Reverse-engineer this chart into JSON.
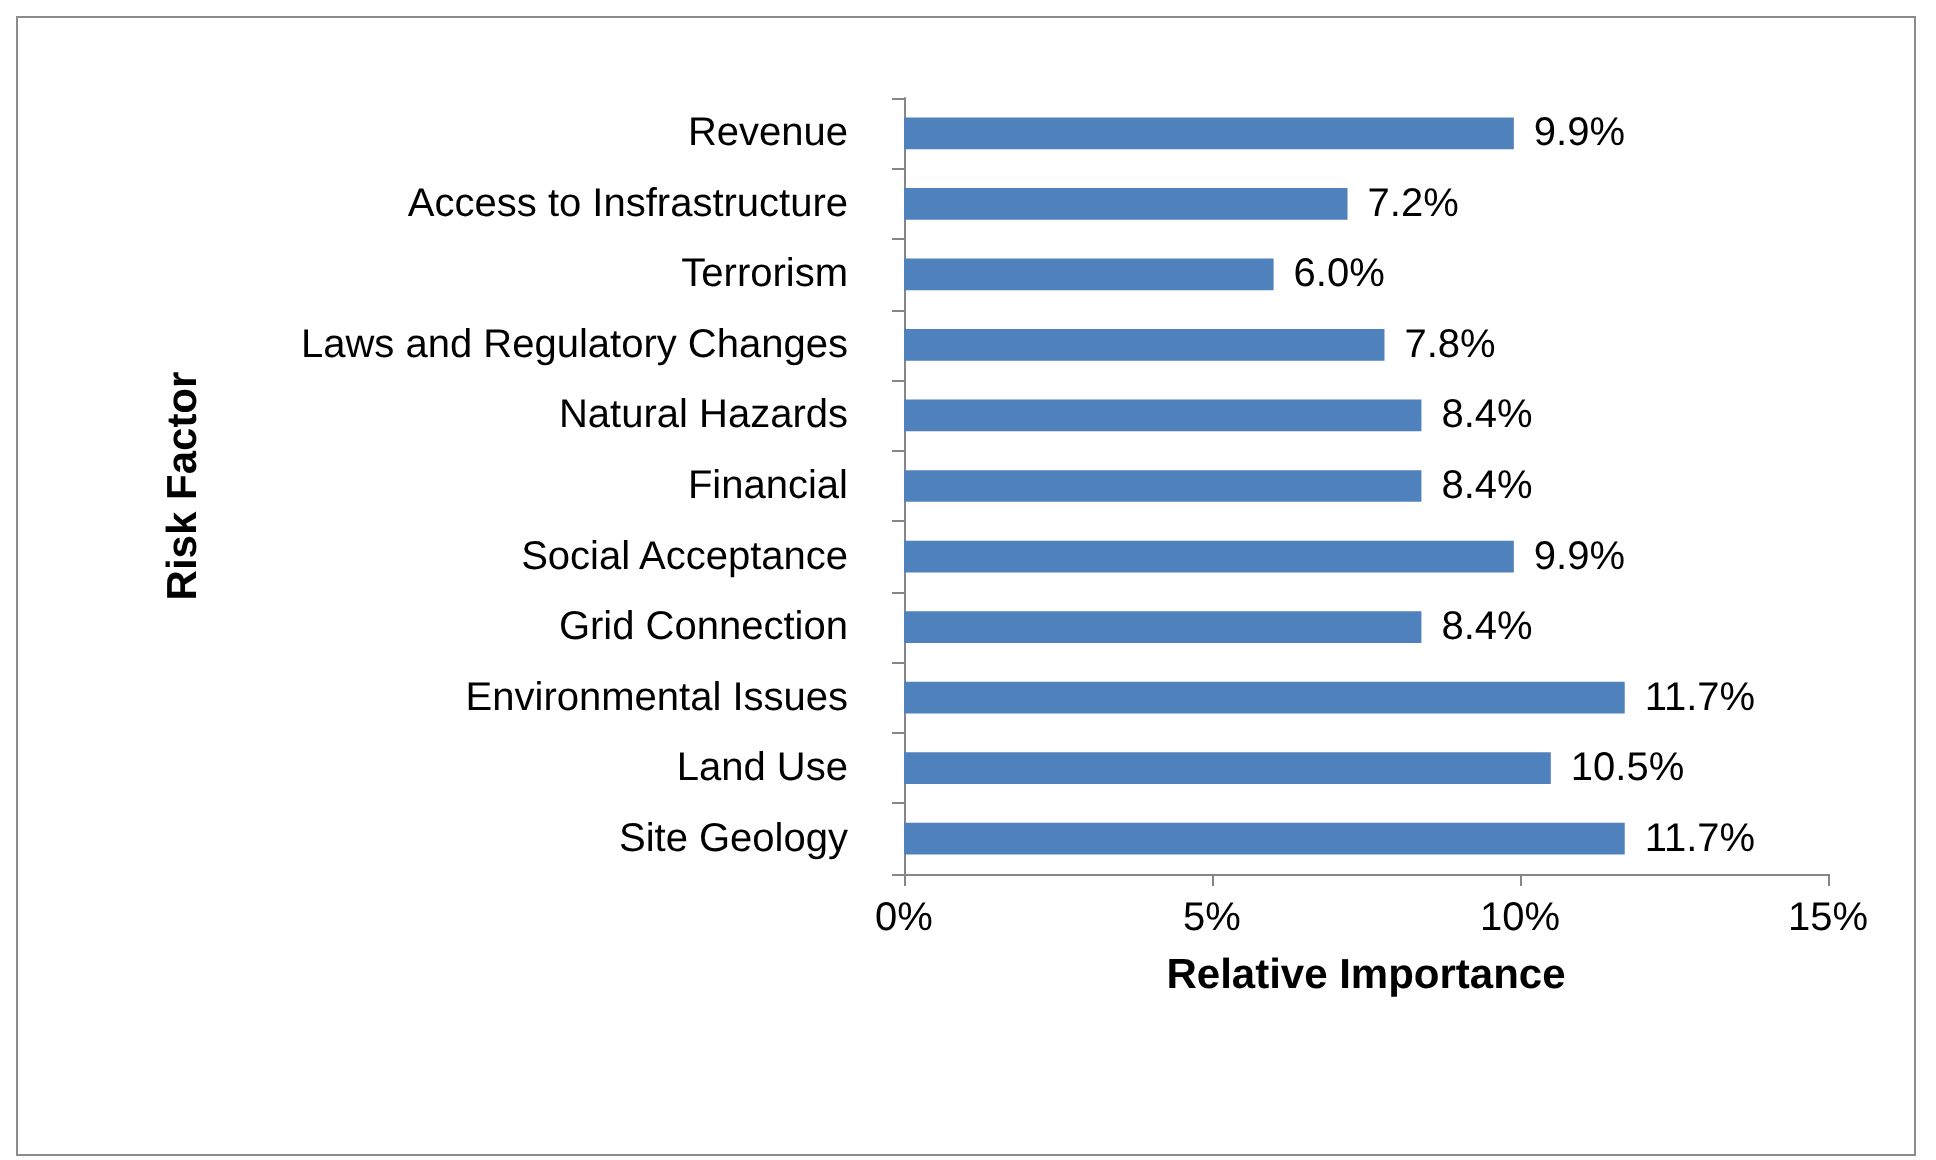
{
  "chart_data": {
    "type": "bar",
    "orientation": "horizontal",
    "xlabel": "Relative Importance",
    "ylabel": "Risk Factor",
    "categories": [
      "Revenue",
      "Access to Insfrastructure",
      "Terrorism",
      "Laws and Regulatory Changes",
      "Natural Hazards",
      "Financial",
      "Social Acceptance",
      "Grid Connection",
      "Environmental Issues",
      "Land Use",
      "Site Geology"
    ],
    "values": [
      9.9,
      7.2,
      6.0,
      7.8,
      8.4,
      8.4,
      9.9,
      8.4,
      11.7,
      10.5,
      11.7
    ],
    "value_labels": [
      "9.9%",
      "7.2%",
      "6.0%",
      "7.8%",
      "8.4%",
      "8.4%",
      "9.9%",
      "8.4%",
      "11.7%",
      "10.5%",
      "11.7%"
    ],
    "color": "#4f81bd",
    "xlim": [
      0,
      15
    ],
    "xticks": [
      {
        "value": 0,
        "label": "0%"
      },
      {
        "value": 5,
        "label": "5%"
      },
      {
        "value": 10,
        "label": "10%"
      },
      {
        "value": 15,
        "label": "15%"
      }
    ],
    "grid": false
  }
}
